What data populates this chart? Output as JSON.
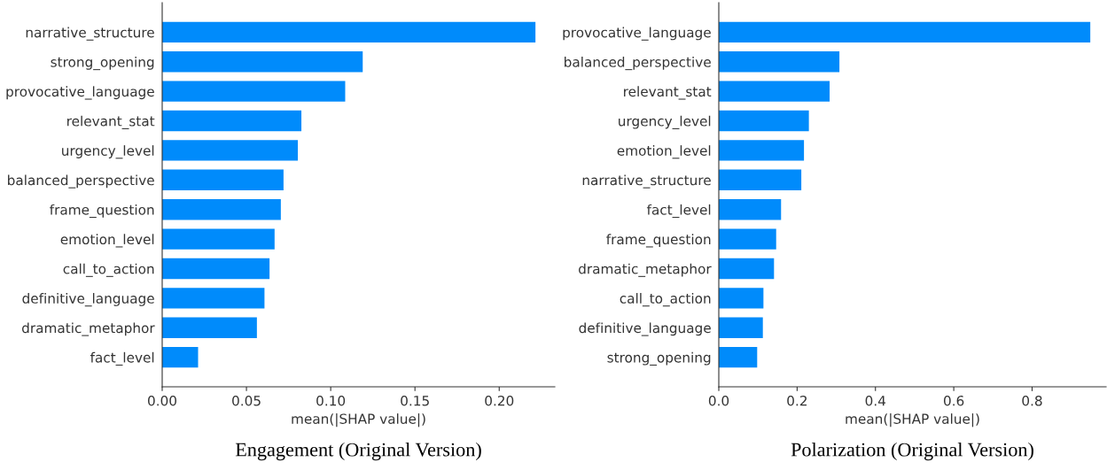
{
  "chart_data": [
    {
      "type": "bar",
      "orientation": "horizontal",
      "title": "Engagement (Original Version)",
      "xlabel": "mean(|SHAP value|)",
      "categories": [
        "narrative_structure",
        "strong_opening",
        "provocative_language",
        "relevant_stat",
        "urgency_level",
        "balanced_perspective",
        "frame_question",
        "emotion_level",
        "call_to_action",
        "definitive_language",
        "dramatic_metaphor",
        "fact_level"
      ],
      "values": [
        0.2215,
        0.119,
        0.1086,
        0.0826,
        0.0805,
        0.072,
        0.0704,
        0.0667,
        0.0637,
        0.0607,
        0.0562,
        0.0213
      ],
      "color": "#008bfb",
      "xlim": [
        0,
        0.233
      ],
      "xticks": [
        {
          "value": 0,
          "label": "0.00"
        },
        0.05,
        {
          "value": 0.1,
          "label": "0.10"
        },
        0.15,
        {
          "value": 0.2,
          "label": "0.20"
        }
      ],
      "grid": false
    },
    {
      "type": "bar",
      "orientation": "horizontal",
      "title": "Polarization (Original Version)",
      "xlabel": "mean(|SHAP value|)",
      "categories": [
        "provocative_language",
        "balanced_perspective",
        "relevant_stat",
        "urgency_level",
        "emotion_level",
        "narrative_structure",
        "fact_level",
        "frame_question",
        "dramatic_metaphor",
        "call_to_action",
        "definitive_language",
        "strong_opening"
      ],
      "values": [
        0.9486,
        0.308,
        0.283,
        0.23,
        0.2175,
        0.2107,
        0.159,
        0.1465,
        0.141,
        0.114,
        0.1125,
        0.098
      ],
      "color": "#008bfb",
      "xlim": [
        0,
        0.989
      ],
      "xticks": [
        {
          "value": 0,
          "label": "0.0"
        },
        0.2,
        0.4,
        0.6,
        0.8
      ],
      "grid": false
    }
  ]
}
